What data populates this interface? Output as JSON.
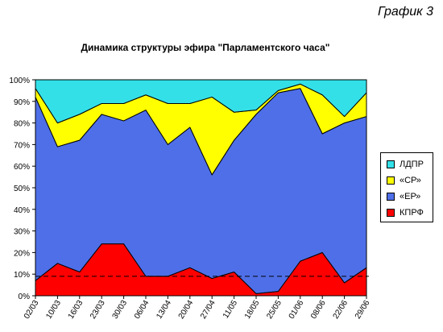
{
  "page_label": "График 3",
  "chart_data": {
    "type": "area",
    "stacked": true,
    "title": "Динамика структуры эфира \"Парламентского часа\"",
    "categories": [
      "02/03",
      "10/03",
      "16/03",
      "23/03",
      "30/03",
      "06/04",
      "13/04",
      "20/04",
      "27/04",
      "11/05",
      "18/05",
      "25/05",
      "01/06",
      "08/06",
      "22/06",
      "29/06"
    ],
    "y_tick_labels": [
      "0%",
      "10%",
      "20%",
      "30%",
      "40%",
      "50%",
      "60%",
      "70%",
      "80%",
      "90%",
      "100%"
    ],
    "ylim": [
      0,
      100
    ],
    "reference_line": 9,
    "series": [
      {
        "name": "КПРФ",
        "color": "#ff0000",
        "values": [
          7,
          15,
          11,
          24,
          24,
          9,
          9,
          13,
          8,
          11,
          1,
          2,
          16,
          20,
          6,
          13
        ]
      },
      {
        "name": "«ЕР»",
        "color": "#4f6fe8",
        "values": [
          85,
          54,
          61,
          60,
          57,
          77,
          61,
          65,
          48,
          61,
          83,
          92,
          80,
          55,
          74,
          70
        ]
      },
      {
        "name": "«СР»",
        "color": "#ffff00",
        "values": [
          4,
          11,
          12,
          5,
          8,
          7,
          19,
          11,
          36,
          13,
          2,
          1,
          2,
          18,
          3,
          11
        ]
      },
      {
        "name": "ЛДПР",
        "color": "#33e0e8",
        "values": [
          4,
          20,
          16,
          11,
          11,
          7,
          11,
          11,
          8,
          15,
          14,
          5,
          2,
          7,
          17,
          6
        ]
      }
    ],
    "legend": {
      "position": "right",
      "order": [
        "ЛДПР",
        "«СР»",
        "«ЕР»",
        "КПРФ"
      ]
    }
  }
}
